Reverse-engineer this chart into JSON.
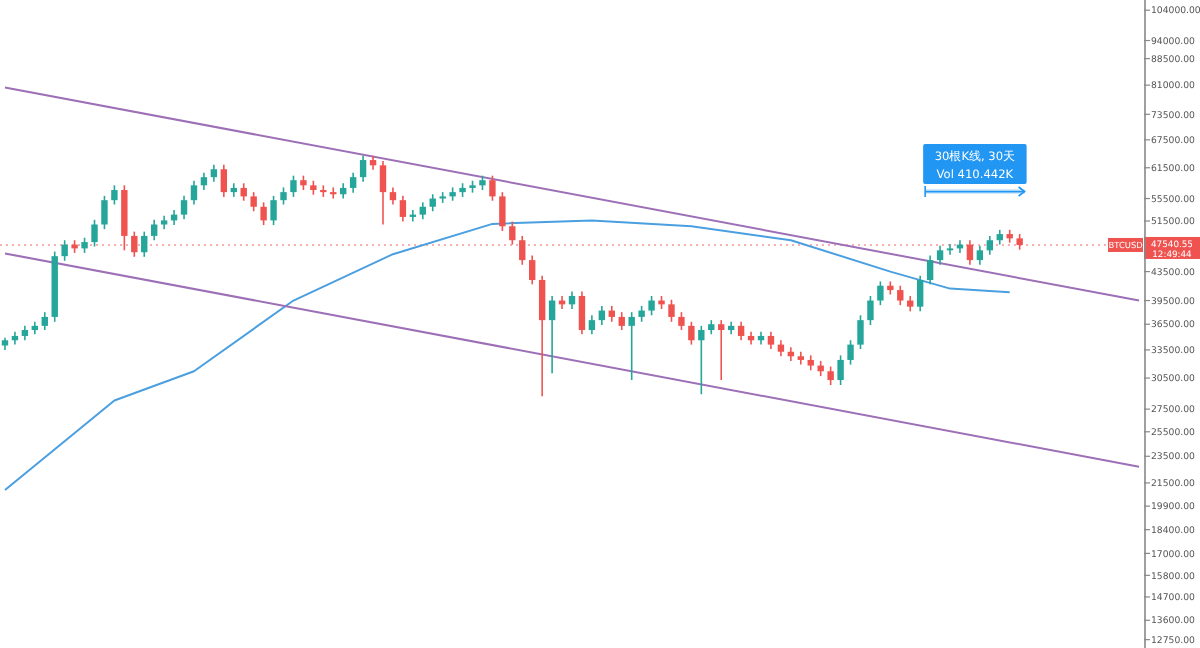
{
  "chart_data": {
    "type": "candlestick",
    "log": true,
    "grid": false,
    "tick_labels": "y",
    "categories": [
      null,
      null,
      null,
      null,
      null,
      null,
      null,
      null,
      null,
      null,
      null,
      null,
      null,
      null,
      null,
      null,
      null,
      null,
      null,
      null,
      null,
      null,
      null,
      null,
      null,
      null,
      null,
      null,
      null,
      null,
      null,
      null,
      null,
      null,
      null,
      null,
      null,
      null,
      null,
      null,
      null,
      null,
      null,
      null,
      null,
      null,
      null,
      null,
      null,
      null,
      null,
      null,
      null,
      null,
      null,
      null,
      null,
      null,
      null,
      null,
      null,
      null,
      null,
      null,
      null,
      null,
      null,
      null,
      null,
      null,
      null,
      null,
      null,
      null,
      null,
      null,
      null,
      null,
      null,
      null,
      null,
      null,
      null,
      null,
      null,
      null,
      null,
      null,
      null,
      null,
      null,
      null,
      null,
      null,
      null,
      null,
      null,
      null,
      null,
      null,
      null,
      null,
      null,
      null,
      null,
      null,
      null,
      null,
      null,
      null,
      null,
      null,
      null,
      null,
      null
    ],
    "colors": [
      "#26a69a",
      "#26a69a",
      "#26a69a",
      "#26a69a",
      "#26a69a",
      "#26a69a",
      "#26a69a",
      "#ef5350",
      "#26a69a",
      "#26a69a",
      "#26a69a",
      "#26a69a",
      "#ef5350",
      "#ef5350",
      "#26a69a",
      "#26a69a",
      "#26a69a",
      "#26a69a",
      "#26a69a",
      "#26a69a",
      "#26a69a",
      "#26a69a",
      "#ef5350",
      "#26a69a",
      "#ef5350",
      "#ef5350",
      "#ef5350",
      "#26a69a",
      "#26a69a",
      "#26a69a",
      "#ef5350",
      "#ef5350",
      "#ef5350",
      "#ef5350",
      "#26a69a",
      "#26a69a",
      "#26a69a",
      "#ef5350",
      "#ef5350",
      "#ef5350",
      "#ef5350",
      "#26a69a",
      "#26a69a",
      "#26a69a",
      "#26a69a",
      "#26a69a",
      "#26a69a",
      "#26a69a",
      "#26a69a",
      "#ef5350",
      "#ef5350",
      "#ef5350",
      "#ef5350",
      "#ef5350",
      "#ef5350",
      "#26a69a",
      "#ef5350",
      "#26a69a",
      "#ef5350",
      "#26a69a",
      "#26a69a",
      "#ef5350",
      "#ef5350",
      "#26a69a",
      "#26a69a",
      "#26a69a",
      "#ef5350",
      "#ef5350",
      "#ef5350",
      "#ef5350",
      "#26a69a",
      "#26a69a",
      "#ef5350",
      "#26a69a",
      "#ef5350",
      "#ef5350",
      "#26a69a",
      "#ef5350",
      "#ef5350",
      "#ef5350",
      "#ef5350",
      "#ef5350",
      "#ef5350",
      "#ef5350",
      "#26a69a",
      "#26a69a",
      "#26a69a",
      "#26a69a",
      "#26a69a",
      "#ef5350",
      "#ef5350",
      "#ef5350",
      "#26a69a",
      "#26a69a",
      "#26a69a",
      "#26a69a",
      "#26a69a",
      "#ef5350",
      "#26a69a",
      "#26a69a",
      "#26a69a",
      "#ef5350",
      "#ef5350",
      null,
      null,
      null,
      null,
      null,
      null,
      null,
      null,
      null,
      null,
      null,
      null
    ],
    "ohlc": [
      [
        34000,
        34900,
        33500,
        34600
      ],
      [
        34600,
        35600,
        34100,
        35100
      ],
      [
        35100,
        36300,
        34600,
        35800
      ],
      [
        35800,
        36800,
        35300,
        36300
      ],
      [
        36300,
        38000,
        35800,
        37400
      ],
      [
        37400,
        46500,
        36800,
        45800
      ],
      [
        45800,
        48300,
        45100,
        47600
      ],
      [
        47600,
        48300,
        46300,
        47000
      ],
      [
        47000,
        48700,
        46300,
        48000
      ],
      [
        48000,
        51700,
        47300,
        50900
      ],
      [
        50900,
        56000,
        50100,
        55200
      ],
      [
        55200,
        58000,
        54400,
        57100
      ],
      [
        57100,
        58000,
        46700,
        49000
      ],
      [
        49000,
        49700,
        45700,
        46400
      ],
      [
        46400,
        49700,
        45700,
        49000
      ],
      [
        49000,
        51700,
        48300,
        50900
      ],
      [
        50900,
        52400,
        50100,
        51600
      ],
      [
        51600,
        53400,
        50800,
        52600
      ],
      [
        52600,
        56000,
        51800,
        55200
      ],
      [
        55200,
        58900,
        54400,
        58000
      ],
      [
        58000,
        60500,
        57100,
        59600
      ],
      [
        59600,
        62100,
        58700,
        61200
      ],
      [
        61200,
        62100,
        55800,
        56700
      ],
      [
        56700,
        58400,
        55800,
        57500
      ],
      [
        57500,
        58400,
        55100,
        55900
      ],
      [
        55900,
        56700,
        53200,
        54000
      ],
      [
        54000,
        54800,
        50800,
        51600
      ],
      [
        51600,
        56000,
        50800,
        55200
      ],
      [
        55200,
        57600,
        54400,
        56700
      ],
      [
        56700,
        59900,
        55800,
        59000
      ],
      [
        59000,
        59900,
        57100,
        58000
      ],
      [
        58000,
        58900,
        56200,
        57100
      ],
      [
        57100,
        58000,
        55800,
        56700
      ],
      [
        56700,
        57600,
        55500,
        56300
      ],
      [
        56300,
        58400,
        55500,
        57500
      ],
      [
        57500,
        60500,
        56600,
        59600
      ],
      [
        59600,
        64000,
        58700,
        63100
      ],
      [
        63100,
        64000,
        61100,
        62000
      ],
      [
        62000,
        62900,
        50900,
        56700
      ],
      [
        56700,
        57600,
        54400,
        55200
      ],
      [
        55200,
        56000,
        51400,
        52200
      ],
      [
        52200,
        53400,
        51400,
        52600
      ],
      [
        52600,
        54800,
        51800,
        54000
      ],
      [
        54000,
        56300,
        53200,
        55500
      ],
      [
        55500,
        56700,
        54700,
        55900
      ],
      [
        55900,
        57600,
        55100,
        56700
      ],
      [
        56700,
        58400,
        55800,
        57500
      ],
      [
        57500,
        58900,
        56600,
        58000
      ],
      [
        58000,
        59900,
        57100,
        59000
      ],
      [
        59000,
        59900,
        55100,
        55900
      ],
      [
        55900,
        56700,
        49800,
        50600
      ],
      [
        50600,
        51400,
        47600,
        48300
      ],
      [
        48300,
        49000,
        44500,
        45200
      ],
      [
        45200,
        45900,
        41700,
        42300
      ],
      [
        42300,
        42900,
        28700,
        37000
      ],
      [
        37000,
        40100,
        31000,
        39500
      ],
      [
        39500,
        40100,
        38400,
        39000
      ],
      [
        39000,
        40700,
        38400,
        40100
      ],
      [
        40100,
        40700,
        35300,
        35800
      ],
      [
        35800,
        37600,
        35300,
        37000
      ],
      [
        37000,
        38800,
        36400,
        38200
      ],
      [
        38200,
        38800,
        36800,
        37400
      ],
      [
        37400,
        38000,
        35800,
        36300
      ],
      [
        36300,
        38000,
        30300,
        37400
      ],
      [
        37400,
        38800,
        36800,
        38200
      ],
      [
        38200,
        40100,
        37600,
        39500
      ],
      [
        39500,
        40100,
        38400,
        39000
      ],
      [
        39000,
        39600,
        36800,
        37400
      ],
      [
        37400,
        38000,
        35800,
        36300
      ],
      [
        36300,
        36800,
        34100,
        34600
      ],
      [
        34600,
        36300,
        28900,
        35800
      ],
      [
        35800,
        37000,
        35300,
        36500
      ],
      [
        36500,
        37000,
        30300,
        35800
      ],
      [
        35800,
        36800,
        35300,
        36300
      ],
      [
        36300,
        36800,
        34600,
        35100
      ],
      [
        35100,
        35600,
        34100,
        34600
      ],
      [
        34600,
        35600,
        34100,
        35100
      ],
      [
        35100,
        35600,
        33600,
        34100
      ],
      [
        34100,
        34600,
        32800,
        33300
      ],
      [
        33300,
        33800,
        32300,
        32800
      ],
      [
        32800,
        33300,
        31900,
        32400
      ],
      [
        32400,
        32900,
        31300,
        31800
      ],
      [
        31800,
        32300,
        30700,
        31200
      ],
      [
        31200,
        31700,
        29800,
        30300
      ],
      [
        30300,
        32900,
        29800,
        32400
      ],
      [
        32400,
        34600,
        31900,
        34100
      ],
      [
        34100,
        37600,
        33600,
        37000
      ],
      [
        37000,
        40100,
        36400,
        39500
      ],
      [
        39500,
        42100,
        38900,
        41500
      ],
      [
        41500,
        42100,
        40300,
        40900
      ],
      [
        40900,
        41500,
        38900,
        39500
      ],
      [
        39500,
        40100,
        38100,
        38700
      ],
      [
        38700,
        42900,
        38100,
        42300
      ],
      [
        42300,
        45900,
        41700,
        45200
      ],
      [
        45200,
        47400,
        44500,
        46700
      ],
      [
        46700,
        47700,
        46000,
        47000
      ],
      [
        47000,
        48300,
        46300,
        47600
      ],
      [
        47600,
        48300,
        44500,
        45200
      ],
      [
        45200,
        47400,
        44500,
        46700
      ],
      [
        46700,
        49000,
        46000,
        48300
      ],
      [
        48300,
        50000,
        47600,
        49300
      ],
      [
        49300,
        50000,
        47900,
        48600
      ],
      [
        48600,
        49300,
        46800,
        47540.55
      ],
      null,
      null,
      null,
      null,
      null,
      null,
      null,
      null,
      null,
      null,
      null,
      null
    ],
    "series": [
      {
        "type": "line",
        "color": "#4a9fe0",
        "values": [
          21000,
          null,
          null,
          null,
          null,
          null,
          null,
          null,
          null,
          null,
          null,
          28300,
          null,
          null,
          null,
          null,
          null,
          null,
          null,
          31200,
          null,
          null,
          null,
          null,
          null,
          null,
          null,
          null,
          null,
          39500,
          null,
          null,
          null,
          null,
          null,
          null,
          null,
          null,
          null,
          46100,
          null,
          null,
          null,
          null,
          null,
          null,
          null,
          null,
          null,
          51000,
          null,
          null,
          null,
          null,
          null,
          null,
          null,
          null,
          null,
          51600,
          null,
          null,
          null,
          null,
          null,
          null,
          null,
          null,
          null,
          50600,
          null,
          null,
          null,
          null,
          null,
          null,
          null,
          null,
          null,
          48300,
          null,
          null,
          null,
          null,
          null,
          null,
          null,
          null,
          null,
          43500,
          null,
          null,
          null,
          null,
          null,
          41100,
          null,
          null,
          null,
          null,
          null,
          40600,
          null,
          null,
          null,
          null,
          null,
          null,
          null,
          null,
          null,
          null,
          null,
          null,
          null
        ]
      },
      {
        "type": "line",
        "color": "#9c6fb6",
        "values": [
          80380,
          null,
          null,
          null,
          null,
          null,
          null,
          null,
          null,
          null,
          null,
          null,
          null,
          null,
          null,
          null,
          null,
          null,
          null,
          null,
          null,
          null,
          null,
          null,
          null,
          null,
          null,
          null,
          null,
          null,
          null,
          null,
          null,
          null,
          null,
          null,
          null,
          null,
          null,
          null,
          null,
          null,
          null,
          null,
          null,
          null,
          null,
          null,
          null,
          null,
          null,
          null,
          null,
          null,
          null,
          null,
          null,
          null,
          null,
          null,
          null,
          null,
          null,
          null,
          null,
          null,
          null,
          null,
          null,
          null,
          null,
          null,
          null,
          null,
          null,
          null,
          null,
          null,
          null,
          null,
          null,
          null,
          null,
          null,
          null,
          null,
          null,
          null,
          null,
          null,
          null,
          null,
          null,
          null,
          null,
          null,
          null,
          null,
          null,
          null,
          null,
          null,
          null,
          null,
          null,
          null,
          null,
          null,
          null,
          null,
          null,
          null,
          null,
          null,
          39500
        ]
      },
      {
        "type": "line",
        "color": "#9c6fb6",
        "values": [
          46220,
          null,
          null,
          null,
          null,
          null,
          null,
          null,
          null,
          null,
          null,
          null,
          null,
          null,
          null,
          null,
          null,
          null,
          null,
          null,
          null,
          null,
          null,
          null,
          null,
          null,
          null,
          null,
          null,
          null,
          null,
          null,
          null,
          null,
          null,
          null,
          null,
          null,
          null,
          null,
          null,
          null,
          null,
          null,
          null,
          null,
          null,
          null,
          null,
          null,
          null,
          null,
          null,
          null,
          null,
          null,
          null,
          null,
          null,
          null,
          null,
          null,
          null,
          null,
          null,
          null,
          null,
          null,
          null,
          null,
          null,
          null,
          null,
          null,
          null,
          null,
          null,
          null,
          null,
          null,
          null,
          null,
          null,
          null,
          null,
          null,
          null,
          null,
          null,
          null,
          null,
          null,
          null,
          null,
          null,
          null,
          null,
          null,
          null,
          null,
          null,
          null,
          null,
          null,
          null,
          null,
          null,
          null,
          null,
          null,
          null,
          null,
          null,
          null,
          22700
        ]
      }
    ],
    "ref_lines": [
      {
        "axis": "y",
        "value": 47540.55,
        "label": "BTCUSD",
        "color": "#ef5350",
        "line_style": "dotted"
      }
    ],
    "annotations": [
      "30根K线, 30天",
      "Vol 410.442K",
      "47540.55",
      "12:49:44"
    ],
    "ylim": [
      12400,
      107600
    ],
    "yticks": [
      {
        "value": 104000,
        "label": "104000.00"
      },
      {
        "value": 94000,
        "label": "94000.00"
      },
      {
        "value": 88500,
        "label": "88500.00"
      },
      {
        "value": 81000,
        "label": "81000.00"
      },
      {
        "value": 73500,
        "label": "73500.00"
      },
      {
        "value": 67500,
        "label": "67500.00"
      },
      {
        "value": 61500,
        "label": "61500.00"
      },
      {
        "value": 55500,
        "label": "55500.00"
      },
      {
        "value": 51500,
        "label": "51500.00"
      },
      {
        "value": 43500,
        "label": "43500.00"
      },
      {
        "value": 39500,
        "label": "39500.00"
      },
      {
        "value": 36500,
        "label": "36500.00"
      },
      {
        "value": 33500,
        "label": "33500.00"
      },
      {
        "value": 30500,
        "label": "30500.00"
      },
      {
        "value": 27500,
        "label": "27500.00"
      },
      {
        "value": 25500,
        "label": "25500.00"
      },
      {
        "value": 23500,
        "label": "23500.00"
      },
      {
        "value": 21500,
        "label": "21500.00"
      },
      {
        "value": 19900,
        "label": "19900.00"
      },
      {
        "value": 18400,
        "label": "18400.00"
      },
      {
        "value": 17000,
        "label": "17000.00"
      },
      {
        "value": 15800,
        "label": "15800.00"
      },
      {
        "value": 14700,
        "label": "14700.00"
      },
      {
        "value": 13600,
        "label": "13600.00"
      },
      {
        "value": 12750,
        "label": "12750.00"
      }
    ]
  }
}
